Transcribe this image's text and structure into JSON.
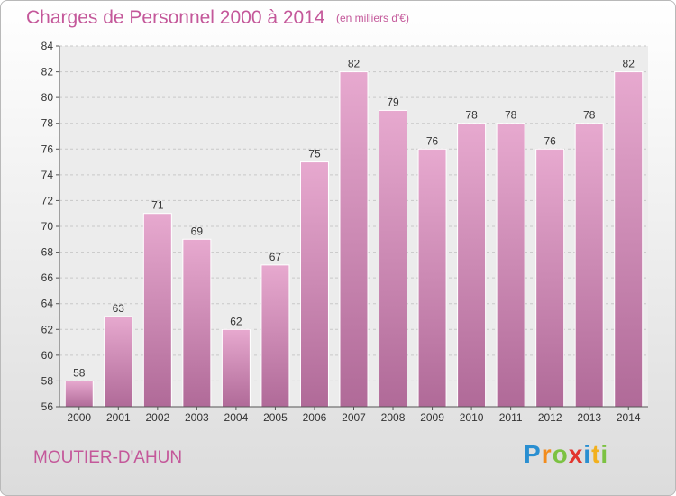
{
  "chart_data": {
    "type": "bar",
    "title": "Charges de Personnel 2000 à 2014",
    "subtitle": "(en milliers d'€)",
    "categories": [
      "2000",
      "2001",
      "2002",
      "2003",
      "2004",
      "2005",
      "2006",
      "2007",
      "2008",
      "2009",
      "2010",
      "2011",
      "2012",
      "2013",
      "2014"
    ],
    "values": [
      58,
      63,
      71,
      69,
      62,
      67,
      75,
      82,
      79,
      76,
      78,
      78,
      76,
      78,
      82
    ],
    "ylim": [
      56,
      84
    ],
    "yticks": [
      56,
      58,
      60,
      62,
      64,
      66,
      68,
      70,
      72,
      74,
      76,
      78,
      80,
      82,
      84
    ],
    "grid": true,
    "bar_color": "#d98bb8",
    "xlabel": "",
    "ylabel": ""
  },
  "footer": {
    "town": "MOUTIER-D'AHUN",
    "brand_letters": [
      {
        "ch": "P",
        "color": "#2a8fd1"
      },
      {
        "ch": "r",
        "color": "#f28c1d"
      },
      {
        "ch": "o",
        "color": "#7cc242"
      },
      {
        "ch": "x",
        "color": "#e2352d"
      },
      {
        "ch": "i",
        "color": "#2a8fd1"
      },
      {
        "ch": "t",
        "color": "#f2b01d"
      },
      {
        "ch": "i",
        "color": "#7cc242"
      }
    ]
  }
}
